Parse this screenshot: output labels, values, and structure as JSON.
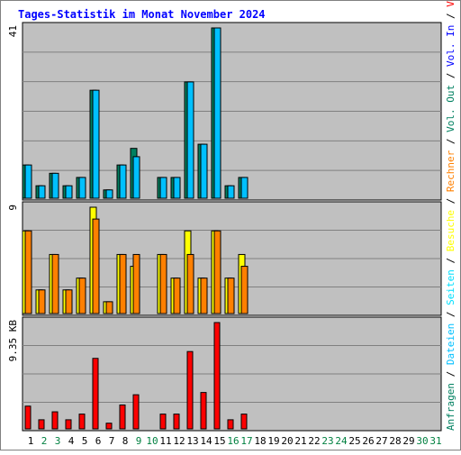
{
  "chart_data": {
    "type": "bar",
    "title": "Tages-Statistik im Monat November 2024",
    "days": [
      "1",
      "2",
      "3",
      "4",
      "5",
      "6",
      "7",
      "8",
      "9",
      "10",
      "11",
      "12",
      "13",
      "14",
      "15",
      "16",
      "17",
      "18",
      "19",
      "20",
      "21",
      "22",
      "23",
      "24",
      "25",
      "26",
      "27",
      "28",
      "29",
      "30",
      "31"
    ],
    "weekend_days": [
      "2",
      "3",
      "9",
      "10",
      "16",
      "17",
      "23",
      "24",
      "30",
      "31"
    ],
    "colors": {
      "background": "#ffffff",
      "plot_background": "#c0c0c0",
      "grid": "#808080",
      "title": "#0000ff",
      "day_label": "#000000",
      "weekend_label": "#008040",
      "anfragen": "#008060",
      "dateien": "#00c0ff",
      "seiten": "#00e0ff",
      "besuche": "#ffff00",
      "rechner": "#ff8000",
      "vol_out": "#008060",
      "vol_in": "#0000ff",
      "volumen": "#ff0000",
      "separator": "#000000"
    },
    "panels": [
      {
        "id": "requests",
        "max_label": "41",
        "max": 41,
        "series": [
          {
            "name": "Anfragen",
            "values": [
              8,
              3,
              6,
              3,
              5,
              26,
              2,
              8,
              12,
              null,
              5,
              5,
              28,
              13,
              41,
              3,
              5,
              null,
              null,
              null,
              null,
              null,
              null,
              null,
              null,
              null,
              null,
              null,
              null,
              null,
              null
            ]
          },
          {
            "name": "Dateien",
            "values": [
              8,
              3,
              6,
              3,
              5,
              26,
              2,
              8,
              10,
              null,
              5,
              5,
              28,
              13,
              41,
              3,
              5,
              null,
              null,
              null,
              null,
              null,
              null,
              null,
              null,
              null,
              null,
              null,
              null,
              null,
              null
            ]
          }
        ]
      },
      {
        "id": "visits",
        "max_label": "9",
        "max": 9,
        "series": [
          {
            "name": "Besuche",
            "values": [
              7,
              2,
              5,
              2,
              3,
              9,
              1,
              5,
              4,
              null,
              5,
              3,
              7,
              3,
              7,
              3,
              5,
              null,
              null,
              null,
              null,
              null,
              null,
              null,
              null,
              null,
              null,
              null,
              null,
              null,
              null
            ]
          },
          {
            "name": "Rechner",
            "values": [
              7,
              2,
              5,
              2,
              3,
              8,
              1,
              5,
              5,
              null,
              5,
              3,
              5,
              3,
              7,
              3,
              4,
              null,
              null,
              null,
              null,
              null,
              null,
              null,
              null,
              null,
              null,
              null,
              null,
              null,
              null
            ]
          }
        ]
      },
      {
        "id": "volume",
        "max_label": "9.35 KB",
        "max": 9.35,
        "series": [
          {
            "name": "Volumen",
            "values": [
              2.0,
              0.8,
              1.5,
              0.8,
              1.3,
              6.2,
              0.5,
              2.1,
              3.0,
              null,
              1.3,
              1.3,
              6.8,
              3.2,
              9.35,
              0.8,
              1.3,
              null,
              null,
              null,
              null,
              null,
              null,
              null,
              null,
              null,
              null,
              null,
              null,
              null,
              null
            ]
          }
        ]
      }
    ],
    "right_legend": [
      {
        "text": "Anfragen",
        "color_key": "anfragen"
      },
      {
        "text": "/",
        "color_key": "separator"
      },
      {
        "text": "Dateien",
        "color_key": "dateien"
      },
      {
        "text": "/",
        "color_key": "separator"
      },
      {
        "text": "Seiten",
        "color_key": "seiten"
      },
      {
        "text": "/",
        "color_key": "separator"
      },
      {
        "text": "Besuche",
        "color_key": "besuche"
      },
      {
        "text": "/",
        "color_key": "separator"
      },
      {
        "text": "Rechner",
        "color_key": "rechner"
      },
      {
        "text": "/",
        "color_key": "separator"
      },
      {
        "text": "Vol. Out",
        "color_key": "vol_out"
      },
      {
        "text": "/",
        "color_key": "separator"
      },
      {
        "text": "Vol. In",
        "color_key": "vol_in"
      },
      {
        "text": "/",
        "color_key": "separator"
      },
      {
        "text": "Volumen",
        "color_key": "volumen"
      }
    ]
  }
}
